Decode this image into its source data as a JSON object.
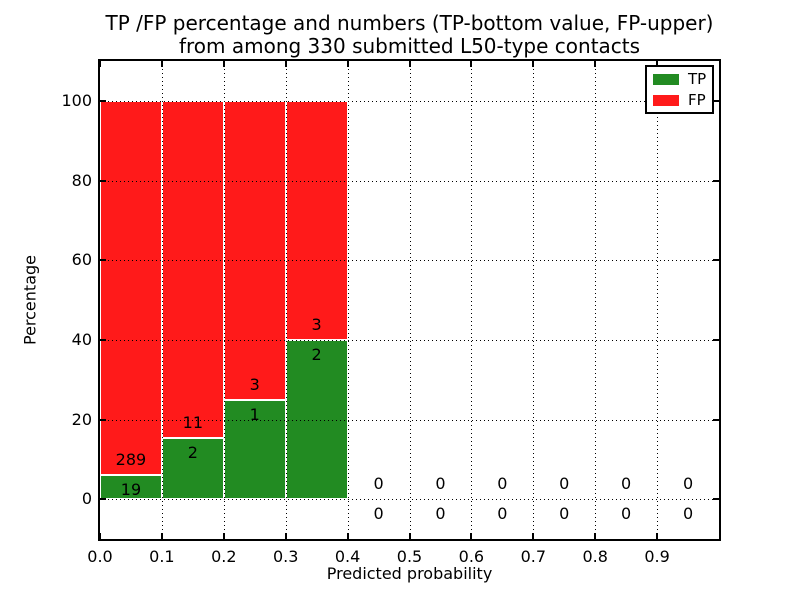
{
  "chart_data": {
    "type": "bar",
    "stacked": true,
    "title": "TP /FP percentage and numbers (TP-bottom value, FP-upper)",
    "subtitle": "from among 330 submitted L50-type contacts",
    "xlabel": "Predicted probability",
    "ylabel": "Percentage",
    "xlim": [
      0.0,
      1.0
    ],
    "ylim": [
      -10,
      110
    ],
    "xticks": [
      0.0,
      0.1,
      0.2,
      0.3,
      0.4,
      0.5,
      0.6,
      0.7,
      0.8,
      0.9
    ],
    "xtick_labels": [
      "0.0",
      "0.1",
      "0.2",
      "0.3",
      "0.4",
      "0.5",
      "0.6",
      "0.7",
      "0.8",
      "0.9"
    ],
    "yticks": [
      0,
      20,
      40,
      60,
      80,
      100
    ],
    "grid": true,
    "grid_style": "dotted",
    "legend": {
      "position": "upper right",
      "items": [
        {
          "label": "TP",
          "color": "#228B22"
        },
        {
          "label": "FP",
          "color": "#ff1a1a"
        }
      ]
    },
    "bins": [
      {
        "x_start": 0.0,
        "x_end": 0.1,
        "tp_count": 19,
        "fp_count": 289,
        "tp_pct": 6.17,
        "fp_pct": 93.83
      },
      {
        "x_start": 0.1,
        "x_end": 0.2,
        "tp_count": 2,
        "fp_count": 11,
        "tp_pct": 15.38,
        "fp_pct": 84.62
      },
      {
        "x_start": 0.2,
        "x_end": 0.3,
        "tp_count": 1,
        "fp_count": 3,
        "tp_pct": 25.0,
        "fp_pct": 75.0
      },
      {
        "x_start": 0.3,
        "x_end": 0.4,
        "tp_count": 2,
        "fp_count": 3,
        "tp_pct": 40.0,
        "fp_pct": 60.0
      },
      {
        "x_start": 0.4,
        "x_end": 0.5,
        "tp_count": 0,
        "fp_count": 0,
        "tp_pct": 0,
        "fp_pct": 0
      },
      {
        "x_start": 0.5,
        "x_end": 0.6,
        "tp_count": 0,
        "fp_count": 0,
        "tp_pct": 0,
        "fp_pct": 0
      },
      {
        "x_start": 0.6,
        "x_end": 0.7,
        "tp_count": 0,
        "fp_count": 0,
        "tp_pct": 0,
        "fp_pct": 0
      },
      {
        "x_start": 0.7,
        "x_end": 0.8,
        "tp_count": 0,
        "fp_count": 0,
        "tp_pct": 0,
        "fp_pct": 0
      },
      {
        "x_start": 0.8,
        "x_end": 0.9,
        "tp_count": 0,
        "fp_count": 0,
        "tp_pct": 0,
        "fp_pct": 0
      },
      {
        "x_start": 0.9,
        "x_end": 1.0,
        "tp_count": 0,
        "fp_count": 0,
        "tp_pct": 0,
        "fp_pct": 0
      }
    ]
  }
}
